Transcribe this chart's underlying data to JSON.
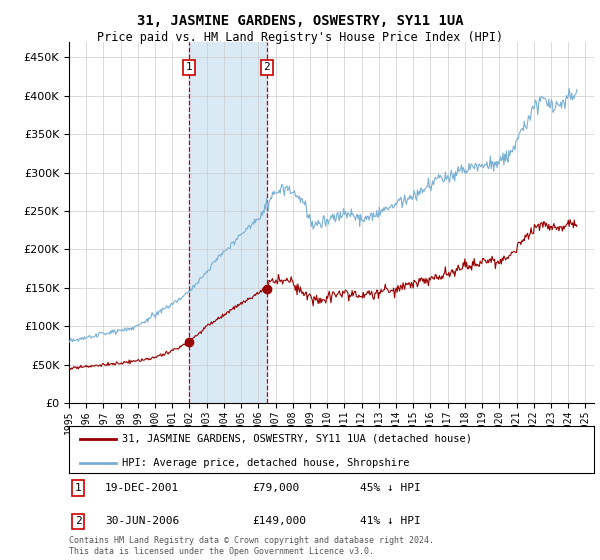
{
  "title": "31, JASMINE GARDENS, OSWESTRY, SY11 1UA",
  "subtitle": "Price paid vs. HM Land Registry's House Price Index (HPI)",
  "ylim": [
    0,
    470000
  ],
  "yticks": [
    0,
    50000,
    100000,
    150000,
    200000,
    250000,
    300000,
    350000,
    400000,
    450000
  ],
  "transaction1": {
    "date_num": 2001.97,
    "price": 79000,
    "label": "1",
    "date_str": "19-DEC-2001",
    "pct": "45% ↓ HPI"
  },
  "transaction2": {
    "date_num": 2006.5,
    "price": 149000,
    "label": "2",
    "date_str": "30-JUN-2006",
    "pct": "41% ↓ HPI"
  },
  "legend_line1": "31, JASMINE GARDENS, OSWESTRY, SY11 1UA (detached house)",
  "legend_line2": "HPI: Average price, detached house, Shropshire",
  "footnote": "Contains HM Land Registry data © Crown copyright and database right 2024.\nThis data is licensed under the Open Government Licence v3.0.",
  "line_color_red": "#990000",
  "line_color_blue": "#7ab0d4",
  "background_color": "#ffffff",
  "shading_color": "#daeaf5",
  "table_row1": [
    "1",
    "19-DEC-2001",
    "£79,000",
    "45% ↓ HPI"
  ],
  "table_row2": [
    "2",
    "30-JUN-2006",
    "£149,000",
    "41% ↓ HPI"
  ]
}
